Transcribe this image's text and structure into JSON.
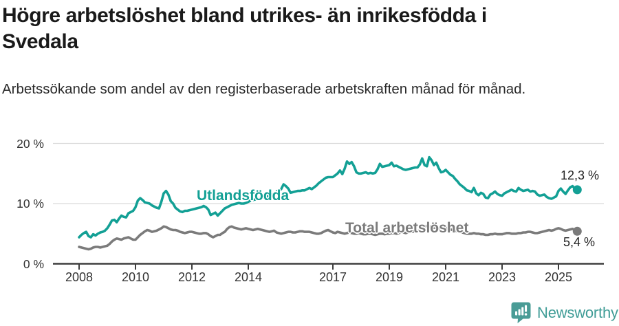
{
  "header": {
    "title": "Högre arbetslöshet bland utrikes- än inrikesfödda i Svedala",
    "subtitle": "Arbetssökande som andel av den registerbaserade arbetskraften månad för månad."
  },
  "footer": {
    "brand": "Newsworthy",
    "logo_icon": "newsworthy-speech-bubble-bar-chart-icon"
  },
  "colors": {
    "foreign_born_line": "#13a095",
    "total_line": "#7b7b7b",
    "axis": "#3d3d3d",
    "gridline": "#d9d9d9",
    "tick_text": "#333333",
    "title_text": "#1a1a1a",
    "brand_teal": "#3f9c96",
    "logo_fill": "#4a9c96"
  },
  "chart_data": {
    "type": "line",
    "x_start": 2008.0,
    "x_step_months": 1,
    "x_ticks": [
      2008,
      2010,
      2012,
      2014,
      2017,
      2019,
      2021,
      2023,
      2025
    ],
    "y_ticks": [
      {
        "value": 0,
        "label": "0 %"
      },
      {
        "value": 10,
        "label": "10 %"
      },
      {
        "value": 20,
        "label": "20 %"
      }
    ],
    "ylim": [
      0,
      20
    ],
    "grid": true,
    "legend_position": "inline-labels",
    "series": [
      {
        "name": "Utlandsfödda",
        "color": "#13a095",
        "end_label": "12,3 %",
        "end_value": 12.3,
        "values": [
          4.4,
          4.8,
          5.1,
          5.3,
          4.6,
          4.4,
          4.9,
          4.7,
          5.0,
          5.2,
          5.3,
          5.5,
          5.9,
          6.5,
          7.2,
          7.3,
          6.9,
          7.5,
          8.0,
          7.8,
          7.7,
          8.4,
          8.6,
          8.8,
          9.4,
          10.5,
          10.9,
          10.6,
          10.2,
          10.1,
          10.0,
          9.7,
          9.5,
          9.3,
          9.2,
          10.3,
          11.7,
          12.1,
          11.5,
          10.4,
          10.0,
          9.3,
          9.0,
          8.7,
          8.6,
          8.8,
          8.8,
          8.9,
          9.0,
          9.1,
          9.2,
          9.3,
          9.4,
          9.6,
          9.4,
          9.0,
          8.1,
          8.3,
          8.5,
          8.0,
          8.4,
          8.8,
          9.2,
          9.4,
          9.6,
          9.8,
          9.9,
          10.0,
          10.1,
          10.0,
          10.0,
          10.1,
          10.3,
          10.5,
          10.6,
          10.7,
          10.8,
          10.9,
          11.0,
          11.1,
          11.2,
          11.3,
          11.4,
          11.7,
          12.0,
          12.2,
          12.4,
          13.2,
          12.9,
          12.5,
          11.8,
          11.9,
          12.0,
          12.1,
          12.1,
          12.2,
          12.2,
          12.4,
          12.6,
          12.4,
          12.7,
          13.0,
          13.4,
          13.7,
          14.0,
          14.3,
          14.4,
          14.4,
          14.4,
          14.7,
          15.0,
          15.5,
          14.9,
          15.8,
          17.0,
          16.6,
          16.9,
          16.2,
          15.2,
          15.0,
          15.0,
          15.1,
          15.2,
          15.0,
          15.1,
          15.0,
          15.1,
          15.7,
          16.6,
          16.1,
          16.2,
          16.3,
          16.4,
          16.8,
          16.2,
          16.3,
          16.1,
          15.9,
          15.7,
          15.6,
          15.7,
          15.8,
          15.9,
          16.0,
          16.0,
          16.5,
          17.5,
          16.4,
          16.2,
          17.7,
          17.2,
          16.4,
          16.8,
          15.9,
          15.2,
          15.3,
          15.6,
          15.2,
          14.8,
          14.6,
          14.1,
          13.7,
          13.2,
          12.9,
          12.6,
          12.2,
          12.1,
          11.9,
          12.6,
          11.7,
          11.4,
          11.8,
          11.6,
          11.0,
          10.9,
          11.5,
          11.7,
          12.0,
          11.6,
          11.4,
          11.3,
          11.7,
          11.9,
          12.1,
          12.3,
          12.1,
          12.0,
          12.6,
          12.3,
          12.1,
          12.2,
          12.3,
          12.0,
          12.1,
          12.0,
          11.5,
          11.3,
          11.4,
          11.5,
          11.1,
          10.9,
          10.8,
          11.0,
          11.2,
          12.1,
          12.5,
          12.0,
          11.6,
          12.2,
          12.7,
          12.9,
          12.5,
          12.3
        ]
      },
      {
        "name": "Total arbetslöshet",
        "color": "#7b7b7b",
        "end_label": "5,4 %",
        "end_value": 5.4,
        "values": [
          2.8,
          2.7,
          2.6,
          2.5,
          2.4,
          2.5,
          2.7,
          2.8,
          2.8,
          2.7,
          2.8,
          2.9,
          3.0,
          3.3,
          3.7,
          4.0,
          4.2,
          4.1,
          4.0,
          4.2,
          4.3,
          4.4,
          4.2,
          4.0,
          4.0,
          4.4,
          4.8,
          5.1,
          5.4,
          5.6,
          5.5,
          5.3,
          5.4,
          5.5,
          5.7,
          5.9,
          6.2,
          6.1,
          5.9,
          5.7,
          5.6,
          5.6,
          5.5,
          5.3,
          5.2,
          5.1,
          5.2,
          5.3,
          5.3,
          5.2,
          5.1,
          5.0,
          5.0,
          5.1,
          5.1,
          4.9,
          4.6,
          4.4,
          4.6,
          4.8,
          4.8,
          5.1,
          5.3,
          5.8,
          6.1,
          6.2,
          6.0,
          5.9,
          5.8,
          5.7,
          5.8,
          5.9,
          5.8,
          5.7,
          5.6,
          5.7,
          5.8,
          5.7,
          5.6,
          5.5,
          5.4,
          5.3,
          5.4,
          5.5,
          5.2,
          5.1,
          5.0,
          5.1,
          5.2,
          5.3,
          5.3,
          5.2,
          5.2,
          5.3,
          5.4,
          5.4,
          5.3,
          5.3,
          5.3,
          5.2,
          5.1,
          5.0,
          5.0,
          5.1,
          5.3,
          5.5,
          5.6,
          5.4,
          5.2,
          5.1,
          5.3,
          5.2,
          5.1,
          5.0,
          5.1,
          5.2,
          5.1,
          5.0,
          5.0,
          5.1,
          5.0,
          4.9,
          4.9,
          5.0,
          5.0,
          4.9,
          4.8,
          4.9,
          5.0,
          5.0,
          4.9,
          5.0,
          5.0,
          5.1,
          5.1,
          5.0,
          5.1,
          5.2,
          5.2,
          5.1,
          5.2,
          5.3,
          5.3,
          5.4,
          5.4,
          5.6,
          6.0,
          6.2,
          6.3,
          6.2,
          6.1,
          6.0,
          6.0,
          5.9,
          5.8,
          5.8,
          5.9,
          5.8,
          5.7,
          5.6,
          5.5,
          5.4,
          5.3,
          5.2,
          5.1,
          5.0,
          5.0,
          5.0,
          5.1,
          5.0,
          5.0,
          4.9,
          4.9,
          4.8,
          4.8,
          4.9,
          4.9,
          5.0,
          4.9,
          4.9,
          4.9,
          5.0,
          5.1,
          5.1,
          5.0,
          5.0,
          5.0,
          5.1,
          5.1,
          5.2,
          5.2,
          5.3,
          5.3,
          5.2,
          5.1,
          5.1,
          5.2,
          5.3,
          5.4,
          5.5,
          5.6,
          5.5,
          5.6,
          5.8,
          5.9,
          5.8,
          5.6,
          5.5,
          5.6,
          5.7,
          5.8,
          5.6,
          5.4
        ]
      }
    ]
  }
}
